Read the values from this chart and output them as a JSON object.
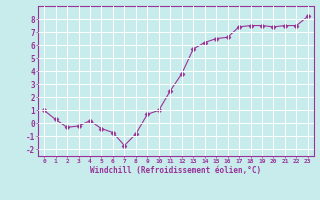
{
  "x": [
    0,
    1,
    2,
    3,
    4,
    5,
    6,
    7,
    8,
    9,
    10,
    11,
    12,
    13,
    14,
    15,
    16,
    17,
    18,
    19,
    20,
    21,
    22,
    23
  ],
  "y": [
    1.0,
    0.3,
    -0.3,
    -0.2,
    0.2,
    -0.4,
    -0.7,
    -1.7,
    -0.8,
    0.7,
    1.0,
    2.5,
    3.8,
    5.7,
    6.2,
    6.5,
    6.6,
    7.4,
    7.5,
    7.5,
    7.4,
    7.5,
    7.5,
    8.2
  ],
  "xlabel": "Windchill (Refroidissement éolien,°C)",
  "xlim": [
    -0.5,
    23.5
  ],
  "ylim": [
    -2.5,
    9.0
  ],
  "yticks": [
    -2,
    -1,
    0,
    1,
    2,
    3,
    4,
    5,
    6,
    7,
    8
  ],
  "xticks": [
    0,
    1,
    2,
    3,
    4,
    5,
    6,
    7,
    8,
    9,
    10,
    11,
    12,
    13,
    14,
    15,
    16,
    17,
    18,
    19,
    20,
    21,
    22,
    23
  ],
  "line_color": "#993399",
  "marker": "D",
  "bg_color": "#c8ecec",
  "grid_color": "#b0d8d8",
  "axis_color": "#993399",
  "tick_color": "#993399",
  "label_color": "#993399"
}
